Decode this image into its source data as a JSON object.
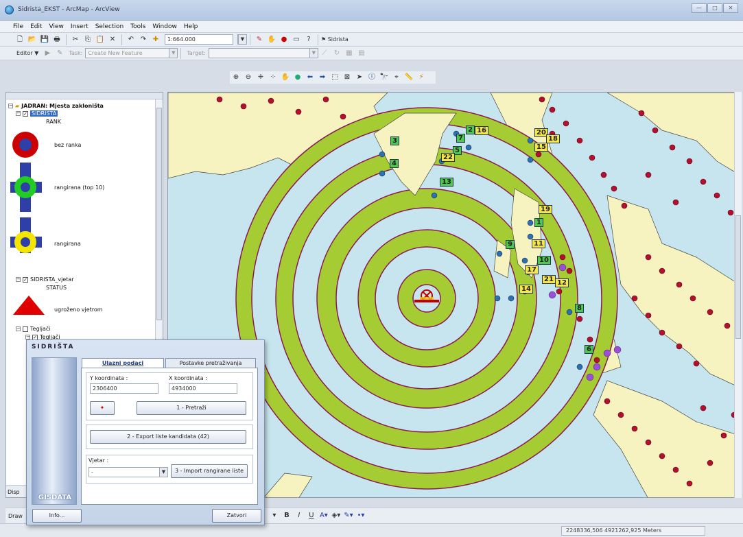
{
  "window": {
    "title": "Sidrista_EKST - ArcMap - ArcView",
    "buttons": [
      "—",
      "□",
      "✕"
    ]
  },
  "menu": [
    "File",
    "Edit",
    "View",
    "Insert",
    "Selection",
    "Tools",
    "Window",
    "Help"
  ],
  "toolbar": {
    "scale": "1:664.000",
    "sidrista_btn": "Sidrista"
  },
  "editor": {
    "label": "Editor ▼",
    "task_label": "Task:",
    "task_value": "Create New Feature",
    "target_label": "Target:"
  },
  "toc": {
    "group": "JADRAN: Mjesta zakloništa",
    "layer1": "SIDRISTA",
    "rank_header": "RANK",
    "legend": [
      {
        "label": "bez ranka"
      },
      {
        "label": "rangirana (top 10)"
      },
      {
        "label": "rangirana"
      }
    ],
    "layer2": "SIDRISTA_vjetar",
    "status_header": "STATUS",
    "wind_label": "ugroženo vjetrom",
    "layer3": "Tegljači",
    "layer3b": "Tegljači",
    "bottom_tab": "Disp",
    "draw_label": "Draw"
  },
  "map": {
    "labels": [
      "2",
      "16",
      "7",
      "3",
      "5",
      "22",
      "4",
      "13",
      "20",
      "18",
      "15",
      "19",
      "1",
      "11",
      "9",
      "10",
      "17",
      "21",
      "12",
      "14",
      "8",
      "6"
    ]
  },
  "dialog": {
    "title": "SIDRIŠTA",
    "logo": "GISDATA",
    "tab_active": "Ulazni podaci",
    "tab_other": "Postavke pretraživanja",
    "y_label": "Y koordinata :",
    "y_value": "2306400",
    "x_label": "X koordinata :",
    "x_value": "4934000",
    "search_btn": "1 - Pretraži",
    "export_btn": "2 - Export liste kandidata (42)",
    "wind_label": "Vjetar :",
    "wind_value": "-",
    "import_btn": "3 - Import rangirane liste",
    "info_btn": "Info...",
    "close_btn": "Zatvori"
  },
  "status": {
    "coords": "2248336,506  4921262,925 Meters"
  }
}
